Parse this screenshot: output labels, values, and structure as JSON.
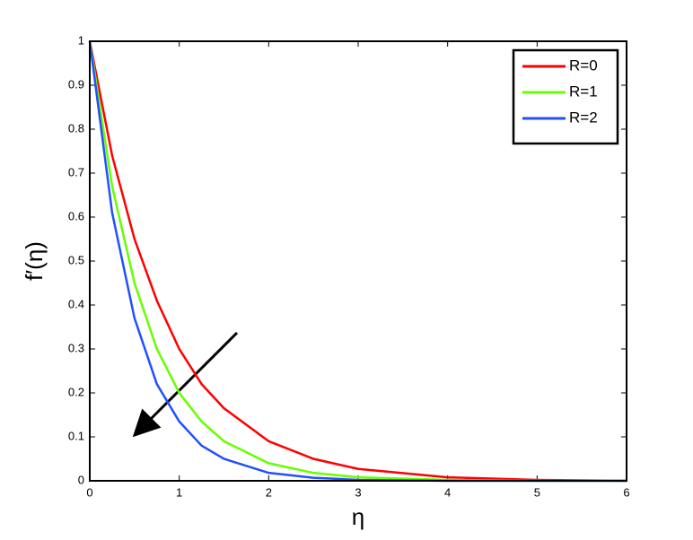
{
  "chart_data": {
    "type": "line",
    "x_label": "η",
    "y_label": "f′(η)",
    "x": [
      0,
      0.25,
      0.5,
      0.75,
      1,
      1.25,
      1.5,
      2,
      2.5,
      3,
      4,
      5,
      6
    ],
    "series": [
      {
        "name": "R=0",
        "color": "#ff0000",
        "values": [
          1,
          0.74,
          0.55,
          0.41,
          0.3,
          0.22,
          0.165,
          0.09,
          0.05,
          0.027,
          0.008,
          0.002,
          0
        ]
      },
      {
        "name": "R=1",
        "color": "#66ff00",
        "values": [
          1,
          0.67,
          0.45,
          0.3,
          0.2,
          0.135,
          0.09,
          0.04,
          0.018,
          0.008,
          0.002,
          0,
          0
        ]
      },
      {
        "name": "R=2",
        "color": "#2050ff",
        "values": [
          1,
          0.61,
          0.37,
          0.22,
          0.135,
          0.08,
          0.05,
          0.018,
          0.007,
          0.002,
          0,
          0,
          0
        ]
      }
    ],
    "xlim": [
      0,
      6
    ],
    "xticks": [
      0,
      1,
      2,
      3,
      4,
      5,
      6
    ],
    "ylim": [
      0,
      1
    ],
    "yticks": [
      0,
      0.1,
      0.2,
      0.3,
      0.4,
      0.5,
      0.6,
      0.7,
      0.8,
      0.9,
      1
    ],
    "legend": "top-right",
    "grid": false
  }
}
